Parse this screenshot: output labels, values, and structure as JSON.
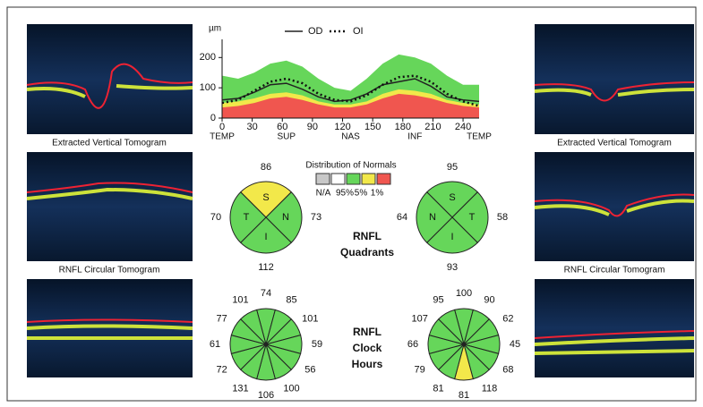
{
  "chart_data": {
    "type": "line",
    "y_label": "µm",
    "x": [
      0,
      16,
      32,
      48,
      64,
      80,
      96,
      112,
      128,
      144,
      160,
      176,
      192,
      208,
      224,
      240,
      256
    ],
    "xlim": [
      0,
      256
    ],
    "ylim": [
      0,
      260
    ],
    "xticks": [
      0,
      30,
      60,
      90,
      120,
      150,
      180,
      210,
      240
    ],
    "yticks": [
      0,
      100,
      200
    ],
    "regions": [
      {
        "value": 0,
        "label": "TEMP"
      },
      {
        "value": 64,
        "label": "SUP"
      },
      {
        "value": 128,
        "label": "NAS"
      },
      {
        "value": 192,
        "label": "INF"
      },
      {
        "value": 256,
        "label": "TEMP"
      }
    ],
    "series": [
      {
        "name": "OD",
        "color": "#222222",
        "style": "solid",
        "values": [
          60,
          65,
          85,
          110,
          115,
          95,
          70,
          55,
          60,
          80,
          110,
          120,
          130,
          105,
          70,
          60,
          55
        ]
      },
      {
        "name": "OI",
        "color": "#111111",
        "style": "dotted",
        "values": [
          50,
          60,
          90,
          120,
          130,
          115,
          80,
          60,
          55,
          75,
          110,
          135,
          140,
          120,
          80,
          55,
          40
        ]
      }
    ],
    "distribution": {
      "title": "Distribution of Normals",
      "bands": [
        {
          "name": "95%",
          "color": "#66d65a",
          "values": [
            140,
            130,
            150,
            180,
            190,
            170,
            130,
            100,
            90,
            130,
            180,
            210,
            200,
            180,
            140,
            110,
            110
          ]
        },
        {
          "name": "5%",
          "color": "#f2e84a",
          "values": [
            50,
            55,
            65,
            80,
            85,
            75,
            55,
            45,
            45,
            55,
            80,
            95,
            90,
            80,
            60,
            50,
            45
          ]
        },
        {
          "name": "1%",
          "color": "#f0564f",
          "values": [
            35,
            40,
            50,
            65,
            70,
            60,
            45,
            35,
            35,
            45,
            65,
            80,
            75,
            65,
            50,
            40,
            35
          ]
        }
      ],
      "na_label": "N/A",
      "na_color": "#c8c8c8"
    }
  },
  "captions": {
    "vertical": "Extracted Vertical Tomogram",
    "circular": "RNFL Circular Tomogram"
  },
  "quadrants": {
    "title": [
      "RNFL",
      "Quadrants"
    ],
    "od": [
      {
        "label": "S",
        "value": 86,
        "color": "#f2e84a"
      },
      {
        "label": "N",
        "value": 73,
        "color": "#66d65a"
      },
      {
        "label": "I",
        "value": 112,
        "color": "#66d65a"
      },
      {
        "label": "T",
        "value": 70,
        "color": "#66d65a"
      }
    ],
    "oi": [
      {
        "label": "S",
        "value": 95,
        "color": "#66d65a"
      },
      {
        "label": "T",
        "value": 58,
        "color": "#66d65a"
      },
      {
        "label": "I",
        "value": 93,
        "color": "#66d65a"
      },
      {
        "label": "N",
        "value": 64,
        "color": "#66d65a"
      }
    ]
  },
  "clock_hours": {
    "title": [
      "RNFL",
      "Clock",
      "Hours"
    ],
    "color": "#66d65a",
    "flag_color": "#f2e84a",
    "od": {
      "values": [
        74,
        85,
        101,
        59,
        56,
        100,
        106,
        131,
        72,
        61,
        77,
        101
      ],
      "flagged": []
    },
    "oi": {
      "values": [
        100,
        90,
        62,
        45,
        68,
        118,
        81,
        81,
        79,
        66,
        107,
        95
      ],
      "flagged": [
        6
      ]
    }
  }
}
